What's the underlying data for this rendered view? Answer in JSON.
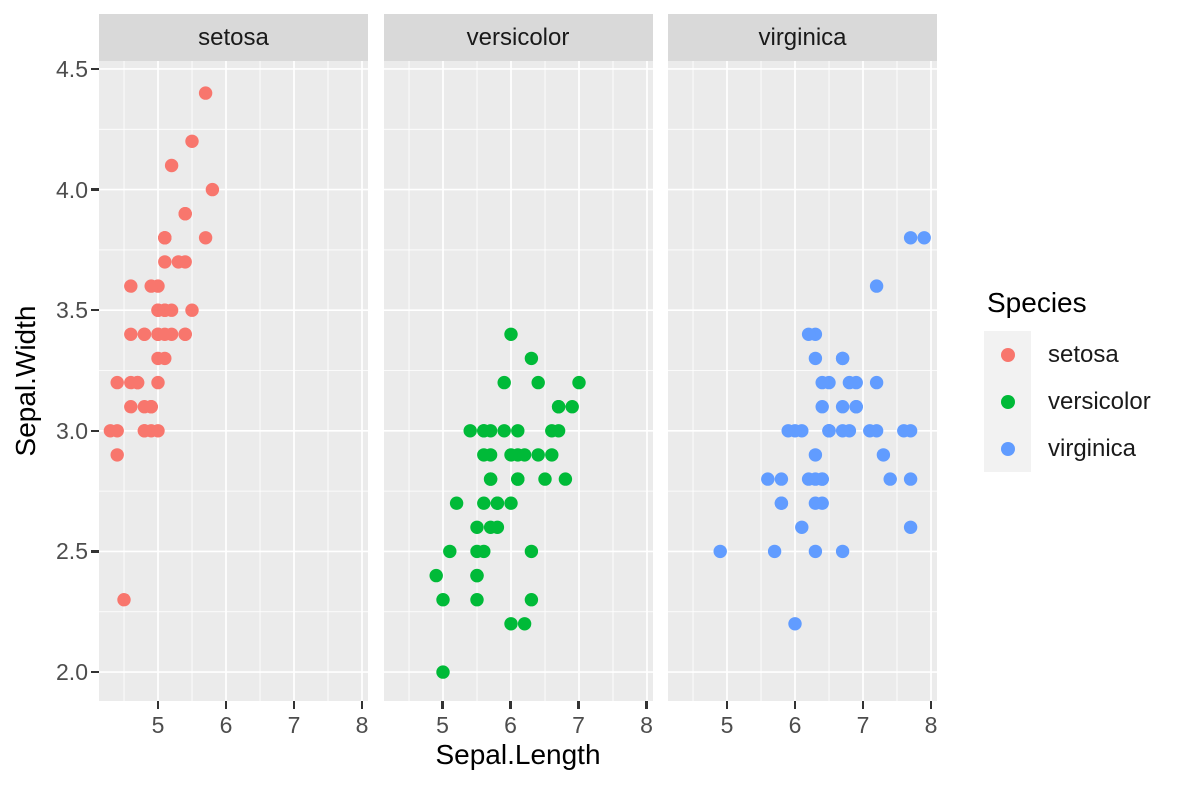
{
  "chart_data": {
    "type": "scatter",
    "title": "",
    "xlabel": "Sepal.Length",
    "ylabel": "Sepal.Width",
    "facet_by": "Species",
    "facet_labels": [
      "setosa",
      "versicolor",
      "virginica"
    ],
    "x_tick_labels": [
      "5",
      "6",
      "7",
      "8"
    ],
    "x_tick_values": [
      5,
      6,
      7,
      8
    ],
    "x_minor_values": [
      4.5,
      5.5,
      6.5,
      7.5
    ],
    "y_tick_labels": [
      "2.0",
      "2.5",
      "3.0",
      "3.5",
      "4.0",
      "4.5"
    ],
    "y_tick_values": [
      2.0,
      2.5,
      3.0,
      3.5,
      4.0,
      4.5
    ],
    "y_minor_values": [
      2.25,
      2.75,
      3.25,
      3.75,
      4.25
    ],
    "xlim": [
      4.132,
      8.088
    ],
    "ylim": [
      1.88,
      4.533
    ],
    "grid": true,
    "legend": {
      "title": "Species",
      "position": "right",
      "entries": [
        {
          "label": "setosa",
          "color": "#F8766D"
        },
        {
          "label": "versicolor",
          "color": "#00BA38"
        },
        {
          "label": "virginica",
          "color": "#619CFF"
        }
      ]
    },
    "theme": {
      "panel_background": "#EBEBEB",
      "strip_background": "#D9D9D9",
      "legend_key_background": "#F2F2F2",
      "grid_color": "#FFFFFF",
      "tick_color": "#333333",
      "tick_label_color": "#4D4D4D",
      "point_radius": 6.7
    },
    "series": [
      {
        "name": "setosa",
        "color": "#F8766D",
        "points": [
          [
            5.1,
            3.5
          ],
          [
            4.9,
            3.0
          ],
          [
            4.7,
            3.2
          ],
          [
            4.6,
            3.1
          ],
          [
            5.0,
            3.6
          ],
          [
            5.4,
            3.9
          ],
          [
            4.6,
            3.4
          ],
          [
            5.0,
            3.4
          ],
          [
            4.4,
            2.9
          ],
          [
            4.9,
            3.1
          ],
          [
            5.4,
            3.7
          ],
          [
            4.8,
            3.4
          ],
          [
            4.8,
            3.0
          ],
          [
            4.3,
            3.0
          ],
          [
            5.8,
            4.0
          ],
          [
            5.7,
            4.4
          ],
          [
            5.4,
            3.9
          ],
          [
            5.1,
            3.5
          ],
          [
            5.7,
            3.8
          ],
          [
            5.1,
            3.8
          ],
          [
            5.4,
            3.4
          ],
          [
            5.1,
            3.7
          ],
          [
            4.6,
            3.6
          ],
          [
            5.1,
            3.3
          ],
          [
            4.8,
            3.4
          ],
          [
            5.0,
            3.0
          ],
          [
            5.0,
            3.4
          ],
          [
            5.2,
            3.5
          ],
          [
            5.2,
            3.4
          ],
          [
            4.7,
            3.2
          ],
          [
            4.8,
            3.1
          ],
          [
            5.4,
            3.4
          ],
          [
            5.2,
            4.1
          ],
          [
            5.5,
            4.2
          ],
          [
            4.9,
            3.1
          ],
          [
            5.0,
            3.2
          ],
          [
            5.5,
            3.5
          ],
          [
            4.9,
            3.6
          ],
          [
            4.4,
            3.0
          ],
          [
            5.1,
            3.4
          ],
          [
            5.0,
            3.5
          ],
          [
            4.5,
            2.3
          ],
          [
            4.4,
            3.2
          ],
          [
            5.0,
            3.5
          ],
          [
            5.1,
            3.8
          ],
          [
            4.8,
            3.0
          ],
          [
            5.1,
            3.8
          ],
          [
            4.6,
            3.2
          ],
          [
            5.3,
            3.7
          ],
          [
            5.0,
            3.3
          ]
        ]
      },
      {
        "name": "versicolor",
        "color": "#00BA38",
        "points": [
          [
            7.0,
            3.2
          ],
          [
            6.4,
            3.2
          ],
          [
            6.9,
            3.1
          ],
          [
            5.5,
            2.3
          ],
          [
            6.5,
            2.8
          ],
          [
            5.7,
            2.8
          ],
          [
            6.3,
            3.3
          ],
          [
            4.9,
            2.4
          ],
          [
            6.6,
            2.9
          ],
          [
            5.2,
            2.7
          ],
          [
            5.0,
            2.0
          ],
          [
            5.9,
            3.0
          ],
          [
            6.0,
            2.2
          ],
          [
            6.1,
            2.9
          ],
          [
            5.6,
            2.9
          ],
          [
            6.7,
            3.1
          ],
          [
            5.6,
            3.0
          ],
          [
            5.8,
            2.7
          ],
          [
            6.2,
            2.2
          ],
          [
            5.6,
            2.5
          ],
          [
            5.9,
            3.2
          ],
          [
            6.1,
            2.8
          ],
          [
            6.3,
            2.5
          ],
          [
            6.1,
            2.8
          ],
          [
            6.4,
            2.9
          ],
          [
            6.6,
            3.0
          ],
          [
            6.8,
            2.8
          ],
          [
            6.7,
            3.0
          ],
          [
            6.0,
            2.9
          ],
          [
            5.7,
            2.6
          ],
          [
            5.5,
            2.4
          ],
          [
            5.5,
            2.4
          ],
          [
            5.8,
            2.7
          ],
          [
            6.0,
            2.7
          ],
          [
            5.4,
            3.0
          ],
          [
            6.0,
            3.4
          ],
          [
            6.7,
            3.1
          ],
          [
            6.3,
            2.3
          ],
          [
            5.6,
            3.0
          ],
          [
            5.5,
            2.5
          ],
          [
            5.5,
            2.6
          ],
          [
            6.1,
            3.0
          ],
          [
            5.8,
            2.6
          ],
          [
            5.0,
            2.3
          ],
          [
            5.6,
            2.7
          ],
          [
            5.7,
            3.0
          ],
          [
            5.7,
            2.9
          ],
          [
            6.2,
            2.9
          ],
          [
            5.1,
            2.5
          ],
          [
            5.7,
            2.8
          ]
        ]
      },
      {
        "name": "virginica",
        "color": "#619CFF",
        "points": [
          [
            6.3,
            3.3
          ],
          [
            5.8,
            2.7
          ],
          [
            7.1,
            3.0
          ],
          [
            6.3,
            2.9
          ],
          [
            6.5,
            3.0
          ],
          [
            7.6,
            3.0
          ],
          [
            4.9,
            2.5
          ],
          [
            7.3,
            2.9
          ],
          [
            6.7,
            2.5
          ],
          [
            7.2,
            3.6
          ],
          [
            6.5,
            3.2
          ],
          [
            6.4,
            2.7
          ],
          [
            6.8,
            3.0
          ],
          [
            5.7,
            2.5
          ],
          [
            5.8,
            2.8
          ],
          [
            6.4,
            3.2
          ],
          [
            6.5,
            3.0
          ],
          [
            7.7,
            3.8
          ],
          [
            7.7,
            2.6
          ],
          [
            6.0,
            2.2
          ],
          [
            6.9,
            3.2
          ],
          [
            5.6,
            2.8
          ],
          [
            7.7,
            2.8
          ],
          [
            6.3,
            2.7
          ],
          [
            6.7,
            3.3
          ],
          [
            7.2,
            3.2
          ],
          [
            6.2,
            2.8
          ],
          [
            6.1,
            3.0
          ],
          [
            6.4,
            2.8
          ],
          [
            7.2,
            3.0
          ],
          [
            7.4,
            2.8
          ],
          [
            7.9,
            3.8
          ],
          [
            6.4,
            2.8
          ],
          [
            6.3,
            2.8
          ],
          [
            6.1,
            2.6
          ],
          [
            7.7,
            3.0
          ],
          [
            6.3,
            3.4
          ],
          [
            6.4,
            3.1
          ],
          [
            6.0,
            3.0
          ],
          [
            6.9,
            3.1
          ],
          [
            6.7,
            3.1
          ],
          [
            6.9,
            3.1
          ],
          [
            5.8,
            2.7
          ],
          [
            6.8,
            3.2
          ],
          [
            6.7,
            3.3
          ],
          [
            6.7,
            3.0
          ],
          [
            6.3,
            2.5
          ],
          [
            6.5,
            3.0
          ],
          [
            6.2,
            3.4
          ],
          [
            5.9,
            3.0
          ]
        ]
      }
    ]
  }
}
